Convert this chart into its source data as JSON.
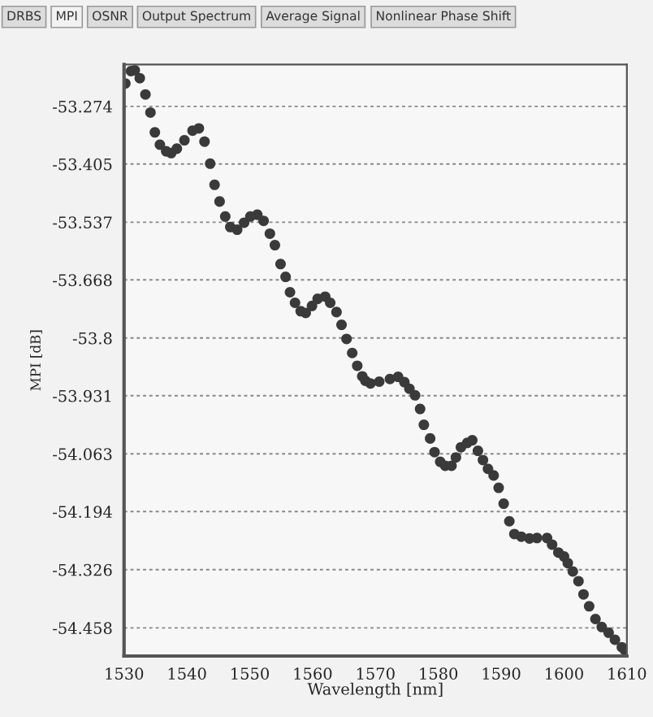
{
  "chart_data": {
    "type": "scatter",
    "xlabel": "Wavelength [nm]",
    "ylabel": "MPI [dB]",
    "annotations": [
      "DRBS",
      "MPI",
      "OSNR",
      "Output Spectrum",
      "Average Signal",
      "Nonlinear Phase Shift"
    ],
    "x": [
      1530.2,
      1531.1,
      1531.7,
      1532.5,
      1533.4,
      1534.2,
      1534.9,
      1535.7,
      1536.7,
      1537.5,
      1538.4,
      1539.6,
      1540.9,
      1541.9,
      1542.8,
      1543.7,
      1544.4,
      1545.2,
      1546.1,
      1546.9,
      1548.0,
      1549.1,
      1550.1,
      1551.2,
      1552.2,
      1553.2,
      1554.0,
      1554.9,
      1555.7,
      1556.4,
      1557.2,
      1558.1,
      1558.9,
      1559.9,
      1560.8,
      1562.0,
      1562.8,
      1563.8,
      1564.6,
      1565.4,
      1566.3,
      1567.1,
      1567.9,
      1568.4,
      1569.2,
      1570.6,
      1572.3,
      1573.6,
      1574.6,
      1575.4,
      1576.3,
      1577.1,
      1577.7,
      1578.7,
      1579.4,
      1580.3,
      1581.1,
      1582.1,
      1582.8,
      1583.6,
      1584.6,
      1585.4,
      1586.3,
      1587.1,
      1587.9,
      1588.8,
      1589.6,
      1590.4,
      1591.3,
      1592.1,
      1593.2,
      1594.5,
      1595.7,
      1597.3,
      1598.1,
      1599.1,
      1600.0,
      1600.6,
      1601.4,
      1602.3,
      1603.1,
      1604.0,
      1605.0,
      1606.0,
      1607.1,
      1608.1,
      1609.2,
      1609.7
    ],
    "series": [
      {
        "color": "#3a3a3a",
        "values": [
          -53.222,
          -53.194,
          -53.192,
          -53.21,
          -53.247,
          -53.288,
          -53.333,
          -53.361,
          -53.376,
          -53.38,
          -53.37,
          -53.351,
          -53.329,
          -53.324,
          -53.354,
          -53.404,
          -53.452,
          -53.49,
          -53.524,
          -53.548,
          -53.554,
          -53.538,
          -53.524,
          -53.52,
          -53.534,
          -53.563,
          -53.589,
          -53.632,
          -53.661,
          -53.696,
          -53.72,
          -53.739,
          -53.743,
          -53.727,
          -53.711,
          -53.706,
          -53.72,
          -53.741,
          -53.77,
          -53.802,
          -53.834,
          -53.863,
          -53.887,
          -53.897,
          -53.903,
          -53.899,
          -53.893,
          -53.888,
          -53.9,
          -53.915,
          -53.93,
          -53.961,
          -53.997,
          -54.028,
          -54.059,
          -54.081,
          -54.09,
          -54.09,
          -54.071,
          -54.048,
          -54.038,
          -54.032,
          -54.056,
          -54.077,
          -54.097,
          -54.112,
          -54.14,
          -54.176,
          -54.216,
          -54.245,
          -54.251,
          -54.255,
          -54.254,
          -54.254,
          -54.269,
          -54.287,
          -54.296,
          -54.311,
          -54.33,
          -54.352,
          -54.382,
          -54.409,
          -54.438,
          -54.456,
          -54.469,
          -54.485,
          -54.502,
          -54.509
        ]
      }
    ],
    "xlim": [
      1530,
      1610
    ],
    "xticks": [
      1530,
      1540,
      1550,
      1560,
      1570,
      1580,
      1590,
      1600,
      1610
    ],
    "ylim": [
      -54.522,
      -53.179
    ],
    "yticks": [
      -53.274,
      -53.405,
      -53.537,
      -53.668,
      -53.8,
      -53.931,
      -54.063,
      -54.194,
      -54.326,
      -54.458
    ],
    "grid": "y",
    "marker": "circle"
  }
}
